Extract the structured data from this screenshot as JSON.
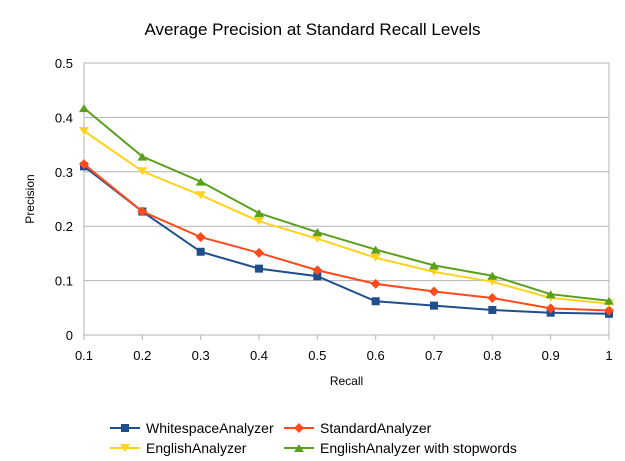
{
  "chart_data": {
    "type": "line",
    "title": "Average Precision at Standard Recall Levels",
    "xlabel": "Recall",
    "ylabel": "Precision",
    "x": [
      0.1,
      0.2,
      0.3,
      0.4,
      0.5,
      0.6,
      0.7,
      0.8,
      0.9,
      1.0
    ],
    "x_tick_labels": [
      "0.1",
      "0.2",
      "0.3",
      "0.4",
      "0.5",
      "0.6",
      "0.7",
      "0.8",
      "0.9",
      "1"
    ],
    "ylim": [
      0,
      0.5
    ],
    "y_ticks": [
      0,
      0.1,
      0.2,
      0.3,
      0.4,
      0.5
    ],
    "y_tick_labels": [
      "0",
      "0.1",
      "0.2",
      "0.3",
      "0.4",
      "0.5"
    ],
    "grid": "horizontal",
    "legend_position": "bottom",
    "series": [
      {
        "name": "WhitespaceAnalyzer",
        "color": "#1f4e8c",
        "marker": "square",
        "values": [
          0.31,
          0.227,
          0.153,
          0.122,
          0.108,
          0.062,
          0.054,
          0.046,
          0.041,
          0.039
        ]
      },
      {
        "name": "StandardAnalyzer",
        "color": "#ff4b1c",
        "marker": "diamond",
        "values": [
          0.314,
          0.227,
          0.18,
          0.151,
          0.119,
          0.094,
          0.08,
          0.068,
          0.049,
          0.045
        ]
      },
      {
        "name": "EnglishAnalyzer",
        "color": "#ffd31c",
        "marker": "triangle-down",
        "values": [
          0.375,
          0.301,
          0.257,
          0.209,
          0.177,
          0.142,
          0.116,
          0.098,
          0.068,
          0.058
        ]
      },
      {
        "name": "EnglishAnalyzer with stopwords",
        "color": "#5b9f1f",
        "marker": "triangle-up",
        "values": [
          0.417,
          0.328,
          0.282,
          0.224,
          0.189,
          0.157,
          0.128,
          0.109,
          0.075,
          0.063
        ]
      }
    ]
  }
}
